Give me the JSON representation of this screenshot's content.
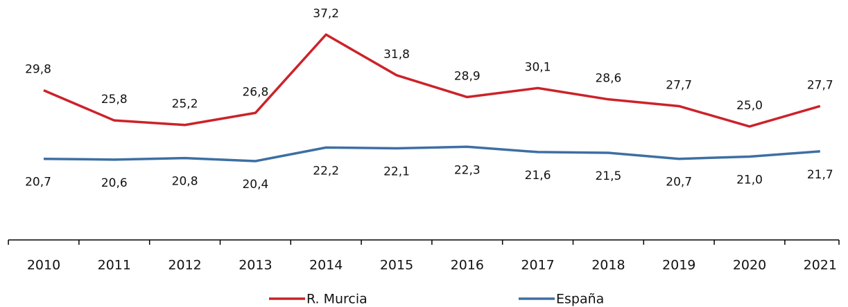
{
  "chart_data": {
    "type": "line",
    "categories": [
      "2010",
      "2011",
      "2012",
      "2013",
      "2014",
      "2015",
      "2016",
      "2017",
      "2018",
      "2019",
      "2020",
      "2021"
    ],
    "series": [
      {
        "name": "R. Murcia",
        "color": "#cc2229",
        "values": [
          29.8,
          25.8,
          25.2,
          26.8,
          37.2,
          31.8,
          28.9,
          30.1,
          28.6,
          27.7,
          25.0,
          27.7
        ],
        "value_labels": [
          "29,8",
          "25,8",
          "25,2",
          "26,8",
          "37,2",
          "31,8",
          "28,9",
          "30,1",
          "28,6",
          "27,7",
          "25,0",
          "27,7"
        ]
      },
      {
        "name": "España",
        "color": "#3d6fa3",
        "values": [
          20.7,
          20.6,
          20.8,
          20.4,
          22.2,
          22.1,
          22.3,
          21.6,
          21.5,
          20.7,
          21.0,
          21.7
        ],
        "value_labels": [
          "20,7",
          "20,6",
          "20,8",
          "20,4",
          "22,2",
          "22,1",
          "22,3",
          "21,6",
          "21,5",
          "20,7",
          "21,0",
          "21,7"
        ]
      }
    ],
    "legend": "bottom"
  }
}
